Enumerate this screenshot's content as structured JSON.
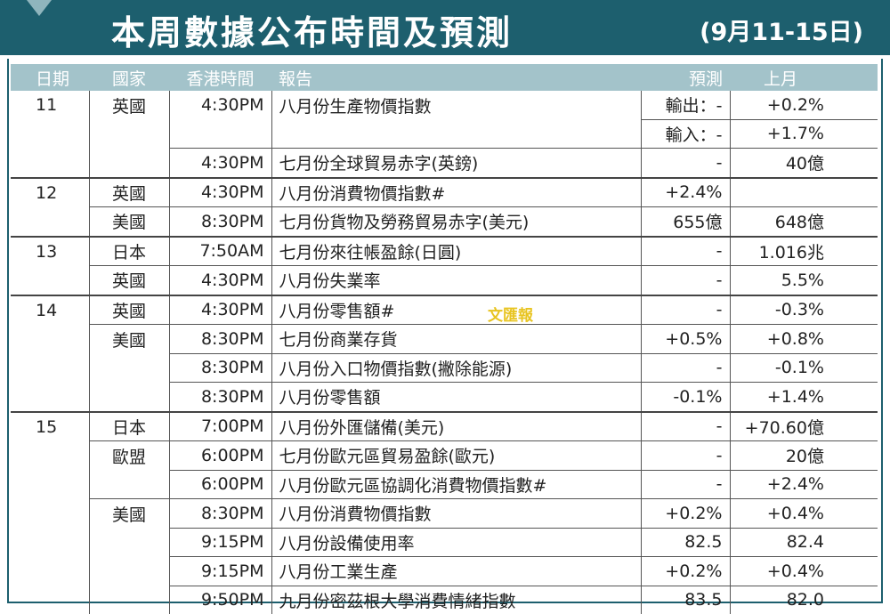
{
  "header": {
    "title": "本周數據公布時間及預測",
    "subtitle": "(9月11-15日)"
  },
  "watermark": "文匯報",
  "table": {
    "columns": [
      "日期",
      "國家",
      "香港時間",
      "報告",
      "預測",
      "上月"
    ],
    "rows": [
      [
        "11",
        "英國",
        "4:30PM",
        "八月份生產物價指數",
        "輸出：-",
        "+0.2%"
      ],
      [
        null,
        null,
        null,
        null,
        "輸入：-",
        "+1.7%"
      ],
      [
        null,
        null,
        "4:30PM",
        "七月份全球貿易赤字(英鎊)",
        "-",
        "40億"
      ],
      [
        "12",
        "英國",
        "4:30PM",
        "八月份消費物價指數#",
        "+2.4%",
        null
      ],
      [
        null,
        "美國",
        "8:30PM",
        "七月份貨物及勞務貿易赤字(美元)",
        "655億",
        "648億"
      ],
      [
        "13",
        "日本",
        "7:50AM",
        "七月份來往帳盈餘(日圓)",
        "-",
        "1.016兆"
      ],
      [
        null,
        "英國",
        "4:30PM",
        "八月份失業率",
        "-",
        "5.5%"
      ],
      [
        "14",
        "英國",
        "4:30PM",
        "八月份零售額#",
        "-",
        "-0.3%"
      ],
      [
        null,
        "美國",
        "8:30PM",
        "七月份商業存貨",
        "+0.5%",
        "+0.8%"
      ],
      [
        null,
        null,
        "8:30PM",
        "八月份入口物價指數(撇除能源)",
        "-",
        "-0.1%"
      ],
      [
        null,
        null,
        "8:30PM",
        "八月份零售額",
        "-0.1%",
        "+1.4%"
      ],
      [
        "15",
        "日本",
        "7:00PM",
        "八月份外匯儲備(美元)",
        "-",
        "+70.60億"
      ],
      [
        null,
        "歐盟",
        "6:00PM",
        "七月份歐元區貿易盈餘(歐元)",
        "-",
        "20億"
      ],
      [
        null,
        null,
        "6:00PM",
        "八月份歐元區協調化消費物價指數#",
        "-",
        "+2.4%"
      ],
      [
        null,
        "美國",
        "8:30PM",
        "八月份消費物價指數",
        "+0.2%",
        "+0.4%"
      ],
      [
        null,
        null,
        "9:15PM",
        "八月份設備使用率",
        "82.5",
        "82.4"
      ],
      [
        null,
        null,
        "9:15PM",
        "八月份工業生產",
        "+0.2%",
        "+0.4%"
      ],
      [
        null,
        null,
        "9:50PM",
        "九月份密茲根大學消費情緒指數",
        "83.5",
        "82.0"
      ]
    ]
  }
}
